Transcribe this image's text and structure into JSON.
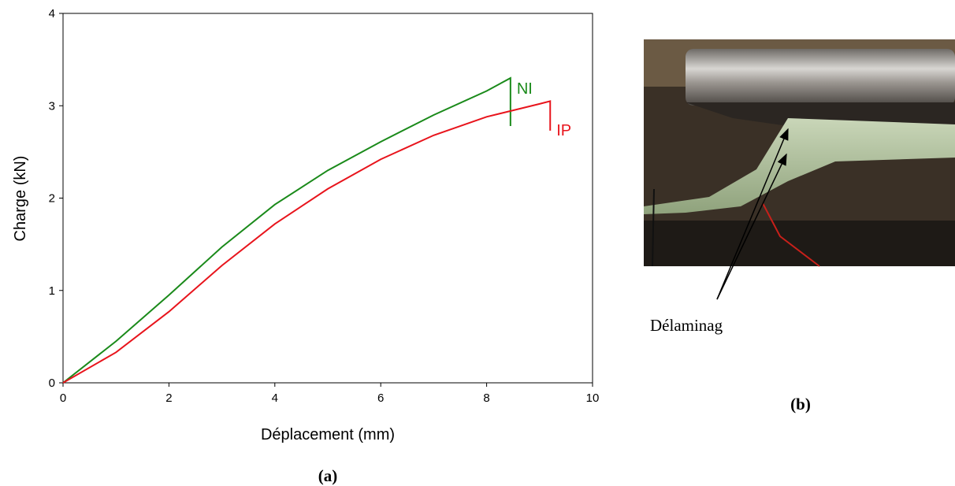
{
  "chart_data": {
    "type": "line",
    "x_label": "Déplacement (mm)",
    "y_label": "Charge (kN)",
    "caption": "(a)",
    "xlim": [
      0,
      10
    ],
    "xticks": [
      0,
      2,
      4,
      6,
      8,
      10
    ],
    "ylim": [
      0,
      4
    ],
    "yticks": [
      0,
      1,
      2,
      3,
      4
    ],
    "series": [
      {
        "name": "NI",
        "color": "#1a8a1a",
        "x": [
          0,
          1,
          2,
          3,
          4,
          5,
          6,
          7,
          8,
          8.45,
          8.45
        ],
        "values": [
          0,
          0.45,
          0.95,
          1.47,
          1.93,
          2.3,
          2.61,
          2.9,
          3.16,
          3.3,
          2.78
        ]
      },
      {
        "name": "IP",
        "color": "#e8141c",
        "x": [
          0,
          1,
          2,
          3,
          4,
          5,
          6,
          7,
          8,
          9,
          9.2,
          9.2
        ],
        "values": [
          0,
          0.33,
          0.77,
          1.27,
          1.72,
          2.1,
          2.42,
          2.68,
          2.88,
          3.02,
          3.05,
          2.73
        ]
      }
    ]
  },
  "photo": {
    "annotation": "Délaminag",
    "caption": "(b)"
  }
}
